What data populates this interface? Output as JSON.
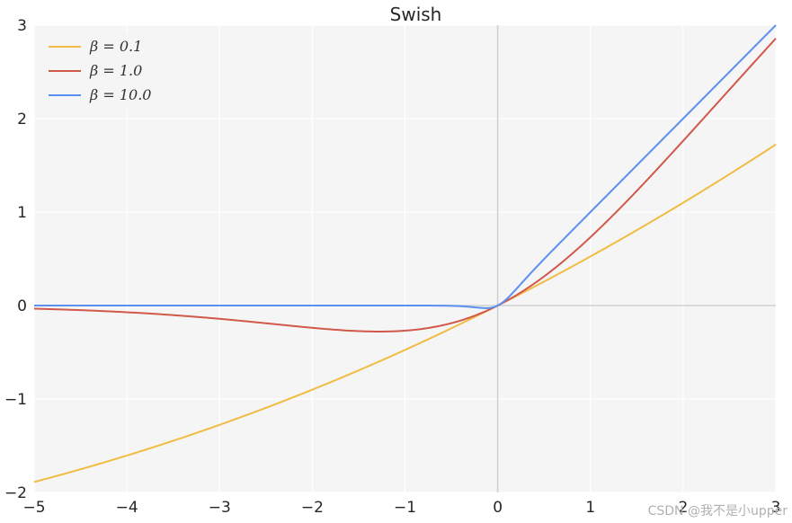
{
  "chart_data": {
    "type": "line",
    "title": "Swish",
    "xlabel": "",
    "ylabel": "",
    "xlim": [
      -5,
      3
    ],
    "ylim": [
      -2,
      3
    ],
    "x_ticks": [
      -5,
      -4,
      -3,
      -2,
      -1,
      0,
      1,
      2,
      3
    ],
    "y_ticks": [
      -2,
      -1,
      0,
      1,
      2,
      3
    ],
    "x_tick_labels": [
      "−5",
      "−4",
      "−3",
      "−2",
      "−1",
      "0",
      "1",
      "2",
      "3"
    ],
    "y_tick_labels": [
      "−2",
      "−1",
      "0",
      "1",
      "2",
      "3"
    ],
    "grid": true,
    "legend_position": "top-left",
    "function": "x * sigmoid(beta * x)",
    "series": [
      {
        "name": "β = 0.1",
        "beta": 0.1,
        "color": "#f0bc42",
        "x": [
          -5,
          -4,
          -3,
          -2,
          -1,
          0,
          1,
          2,
          3
        ],
        "values": [
          -1.89,
          -1.6,
          -1.28,
          -0.9,
          -0.48,
          0,
          0.52,
          1.1,
          1.72
        ]
      },
      {
        "name": "β = 1.0",
        "beta": 1.0,
        "color": "#d1584a",
        "x": [
          -5,
          -4,
          -3,
          -2,
          -1,
          0,
          1,
          2,
          3
        ],
        "values": [
          -0.03,
          -0.07,
          -0.14,
          -0.24,
          -0.27,
          0,
          0.73,
          1.76,
          2.86
        ]
      },
      {
        "name": "β = 10.0",
        "beta": 10.0,
        "color": "#5b8ff0",
        "x": [
          -5,
          -4,
          -3,
          -2,
          -1,
          0,
          1,
          2,
          3
        ],
        "values": [
          0,
          0,
          0,
          0,
          0,
          0,
          1.0,
          2.0,
          3.0
        ]
      }
    ]
  },
  "watermark": "CSDN @我不是小upper",
  "colors": {
    "plot_background": "#f5f5f5",
    "grid": "#ffffff",
    "zero_axis": "#d0d0d0",
    "text": "#262626"
  }
}
